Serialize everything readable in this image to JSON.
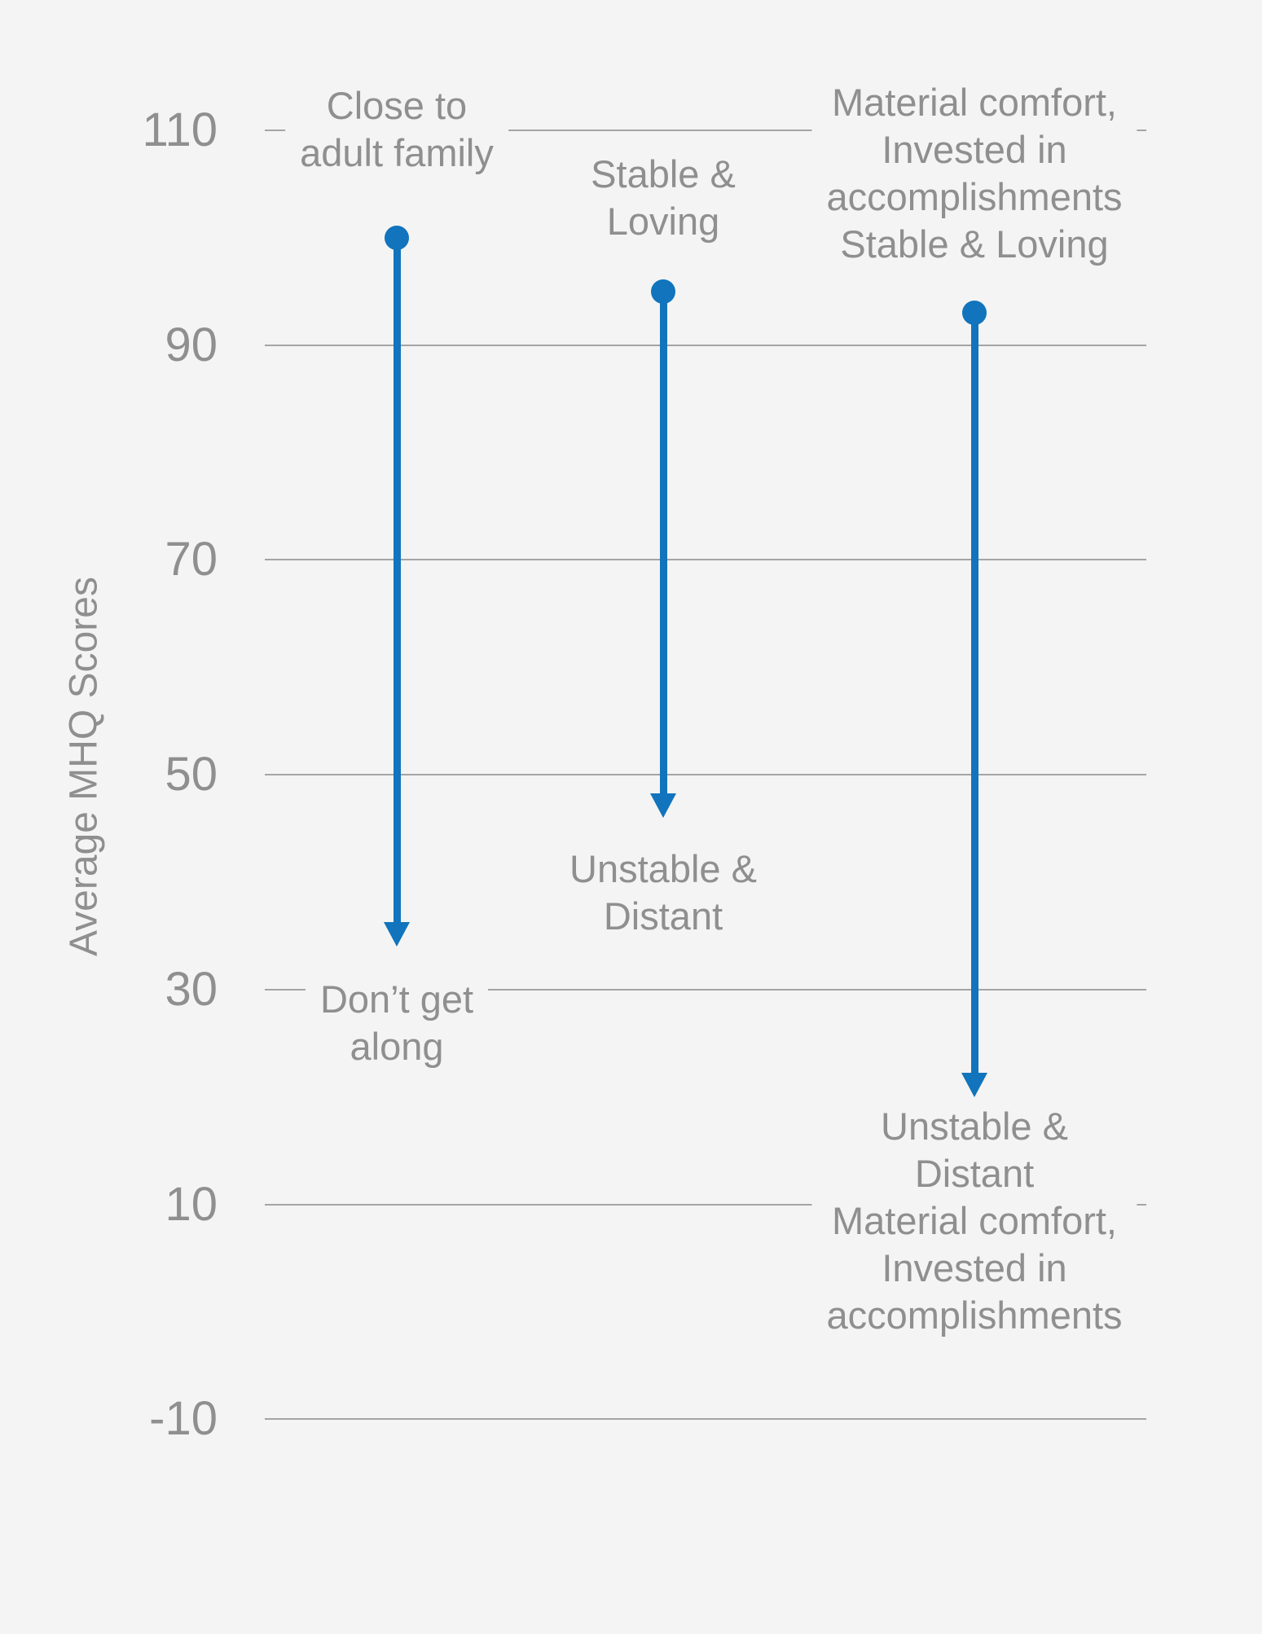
{
  "background_color": "#f4f4f4",
  "chart_data": {
    "type": "dumbbell-arrow",
    "title": "",
    "xlabel": "",
    "ylabel": "Average MHQ Scores",
    "ylim": [
      -10,
      110
    ],
    "yticks": [
      "110",
      "90",
      "70",
      "50",
      "30",
      "10",
      "-10"
    ],
    "grid": "horizontal",
    "legend": "none",
    "arrow_color": "#1174bc",
    "text_color": "#8f8f8f",
    "gridline_color": "#a4a4a4",
    "series": [
      {
        "start_label": "Close to\nadult family",
        "start_value": 100,
        "end_label": "Don’t get\nalong",
        "end_value": 34
      },
      {
        "start_label": "Stable &\nLoving",
        "start_value": 95,
        "end_label": "Unstable &\nDistant",
        "end_value": 46
      },
      {
        "start_label": "Material comfort,\nInvested in\naccomplishments\nStable & Loving",
        "start_value": 93,
        "end_label": "Unstable & Distant\nMaterial comfort,\nInvested in\naccomplishments",
        "end_value": 20
      }
    ]
  }
}
